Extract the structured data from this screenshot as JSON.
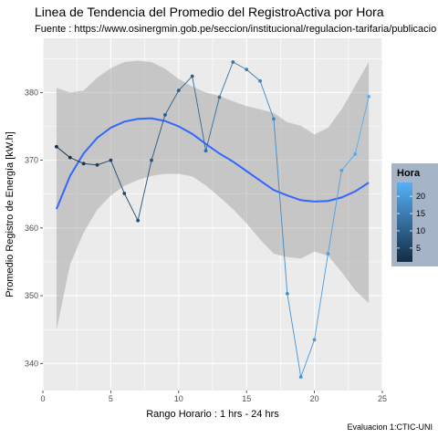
{
  "chart_data": {
    "type": "line",
    "title": "Linea de Tendencia del Promedio del RegistroActiva por Hora",
    "subtitle": "Fuente : https://www.osinergmin.gob.pe/seccion/institucional/regulacion-tarifaria/publicacio",
    "xlabel": "Rango Horario : 1  hrs - 24  hrs",
    "ylabel": "Promedio Registro de Energía [kW.h]",
    "caption": "Evaluacion 1:CTIC-UNI",
    "xlim": [
      0,
      25
    ],
    "ylim": [
      336,
      388
    ],
    "x_ticks": [
      0,
      5,
      10,
      15,
      20,
      25
    ],
    "x_tick_labels": [
      "0",
      "5",
      "10",
      "15",
      "20",
      "25"
    ],
    "y_ticks": [
      340,
      350,
      360,
      370,
      380
    ],
    "y_tick_labels": [
      "340",
      "350",
      "360",
      "370",
      "380"
    ],
    "grid": true,
    "legend": {
      "title": "Hora",
      "position": "right",
      "ticks": [
        5,
        10,
        15,
        20
      ],
      "tick_labels": [
        "5",
        "10",
        "15",
        "20"
      ],
      "range": [
        1,
        24
      ],
      "color_low": "#132b43",
      "color_high": "#56b1f7"
    },
    "series": [
      {
        "x": [
          1,
          2,
          3,
          4,
          5,
          6,
          7,
          8,
          9,
          10,
          11,
          12,
          13,
          14,
          15,
          16,
          17,
          18,
          19,
          20,
          21,
          22,
          23,
          24
        ],
        "values": [
          372,
          370.4,
          369.5,
          369.3,
          370,
          365.1,
          361.1,
          370,
          376.7,
          380.3,
          382.4,
          371.4,
          379.3,
          384.5,
          383.4,
          381.7,
          376.1,
          350.3,
          338,
          343.5,
          356.2,
          368.5,
          370.9,
          379.4
        ]
      }
    ],
    "trend": {
      "x": [
        1,
        2,
        3,
        4,
        5,
        6,
        7,
        8,
        9,
        10,
        11,
        12,
        13,
        14,
        15,
        16,
        17,
        18,
        19,
        20,
        21,
        22,
        23,
        24
      ],
      "values": [
        362.8,
        367.7,
        371,
        373.3,
        374.8,
        375.7,
        376.1,
        376.2,
        375.8,
        375,
        373.9,
        372.4,
        371,
        369.8,
        368.4,
        367,
        365.6,
        364.8,
        364.1,
        363.9,
        364,
        364.5,
        365.4,
        366.7
      ],
      "ci_upper": [
        380.7,
        380,
        380.3,
        382.2,
        383.6,
        384.5,
        384.7,
        384.5,
        383.5,
        382,
        380.9,
        380,
        379.5,
        378.7,
        378,
        377.5,
        377,
        375.6,
        375.1,
        373.8,
        374.8,
        377.5,
        381,
        384.5
      ],
      "ci_lower": [
        344.9,
        354.6,
        359.3,
        362.7,
        364.8,
        366.2,
        367.1,
        367.7,
        368,
        368,
        367.6,
        366.3,
        364.6,
        362.8,
        360.7,
        358.3,
        356.2,
        355.7,
        355.5,
        356.5,
        355.9,
        353.5,
        350.8,
        348.9
      ],
      "color": "#3366ff"
    }
  }
}
